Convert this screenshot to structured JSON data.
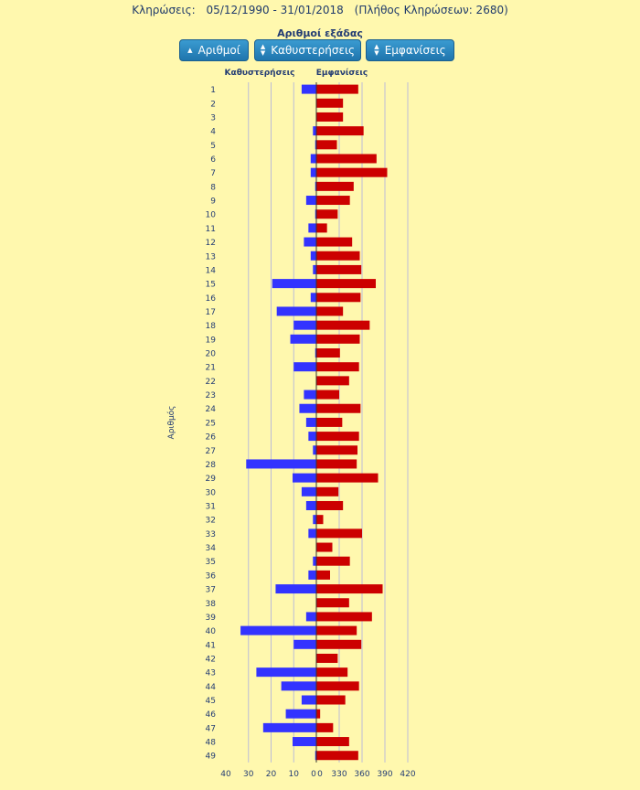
{
  "header": {
    "label": "Κληρώσεις:",
    "date_range": "05/12/1990 - 31/01/2018",
    "count_text": "(Πλήθος Κληρώσεων: 2680)"
  },
  "subtitle": "Αριθμοί εξάδας",
  "buttons": [
    {
      "label": "Αριθμοί",
      "icon": "caret-up-icon"
    },
    {
      "label": "Καθυστερήσεις",
      "icon": "sort-icon"
    },
    {
      "label": "Εμφανίσεις",
      "icon": "sort-icon"
    }
  ],
  "colors": {
    "background": "#fff8ae",
    "delay_bar": "#3333ff",
    "appear_bar": "#cc0000",
    "button": "#2a88c2",
    "grid": "#bcbcd8"
  },
  "chart_data": {
    "type": "bar",
    "orientation": "horizontal",
    "ylabel": "Αριθμός",
    "left_header": "Καθυστερήσεις",
    "right_header": "Εμφανίσεις",
    "categories": [
      "1",
      "2",
      "3",
      "4",
      "5",
      "6",
      "7",
      "8",
      "9",
      "10",
      "11",
      "12",
      "13",
      "14",
      "15",
      "16",
      "17",
      "18",
      "19",
      "20",
      "21",
      "22",
      "23",
      "24",
      "25",
      "26",
      "27",
      "28",
      "29",
      "30",
      "31",
      "32",
      "33",
      "34",
      "35",
      "36",
      "37",
      "38",
      "39",
      "40",
      "41",
      "42",
      "43",
      "44",
      "45",
      "46",
      "47",
      "48",
      "49"
    ],
    "left_ticks": [
      "40",
      "30",
      "20",
      "10",
      "0"
    ],
    "right_ticks": [
      "0",
      "330",
      "360",
      "390",
      "420"
    ],
    "series": [
      {
        "name": "Καθυστερήσεις",
        "xlim": [
          0,
          40
        ],
        "values": [
          6.5,
          0,
          0,
          1.5,
          0.5,
          2.5,
          2.5,
          0.5,
          4.5,
          0.5,
          3.5,
          5.5,
          2.5,
          1.5,
          19.5,
          2.5,
          17.5,
          10,
          11.5,
          0.5,
          10,
          0,
          5.5,
          7.5,
          4.5,
          3.5,
          1.5,
          31,
          10.5,
          6.5,
          4.5,
          1.5,
          3.5,
          0,
          1.5,
          3.5,
          18,
          0,
          4.5,
          33.5,
          10,
          0,
          26.5,
          15.5,
          6.5,
          13.5,
          23.5,
          10.5,
          0.5
        ]
      },
      {
        "name": "Εμφανίσεις",
        "xlim": [
          300,
          420
        ],
        "values": [
          355,
          335,
          335,
          362,
          327,
          379,
          393,
          349,
          344,
          328,
          314,
          347,
          357,
          359,
          378,
          358,
          335,
          370,
          357,
          331,
          356,
          343,
          330,
          358,
          334,
          356,
          354,
          353,
          381,
          329,
          335,
          309,
          360,
          321,
          344,
          318,
          387,
          343,
          373,
          353,
          359,
          328,
          341,
          356,
          338,
          305,
          322,
          343,
          355
        ]
      }
    ]
  }
}
